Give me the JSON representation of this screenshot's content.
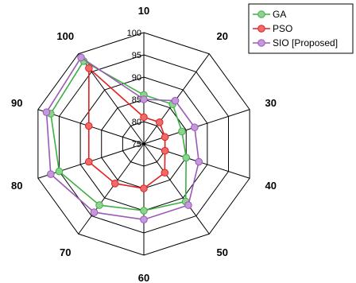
{
  "chart_data": {
    "type": "radar",
    "title": "",
    "categories": [
      "10",
      "20",
      "30",
      "40",
      "50",
      "60",
      "70",
      "80",
      "90",
      "100"
    ],
    "radial_axis": {
      "min": 75,
      "max": 100,
      "ticks": [
        "75",
        "80",
        "85",
        "90",
        "95",
        "100"
      ],
      "tick_values": [
        75,
        80,
        85,
        90,
        95,
        100
      ]
    },
    "grid": true,
    "legend": "top-right",
    "series": [
      {
        "name": "GA",
        "color": "#3cb043",
        "marker_color": "#8fd18f",
        "values": [
          86,
          86,
          84,
          85,
          91,
          90,
          92,
          95,
          97,
          98
        ]
      },
      {
        "name": "PSO",
        "color": "#e02020",
        "marker_color": "#f06a6a",
        "values": [
          81,
          81,
          80,
          80,
          83,
          85,
          86,
          88,
          88,
          96
        ]
      },
      {
        "name": "SIO [Proposed]",
        "color": "#9b59b6",
        "marker_color": "#c597dd",
        "values": [
          85,
          87,
          87,
          88,
          92,
          92,
          94,
          97,
          98,
          99
        ]
      }
    ]
  }
}
